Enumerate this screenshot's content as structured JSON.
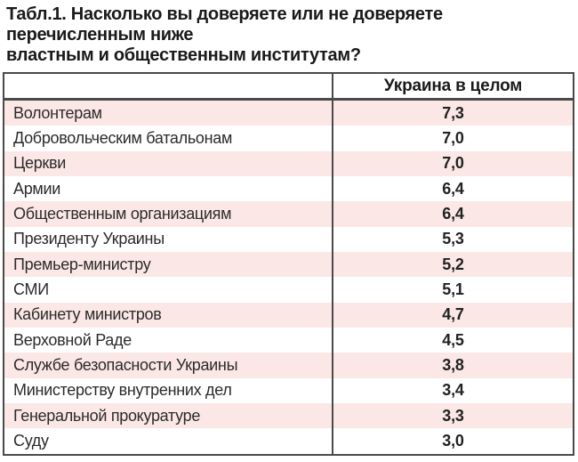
{
  "title": {
    "lines": [
      "Табл.1. Насколько вы доверяете или не доверяете",
      "перечисленным ниже",
      "властным и общественным институтам?"
    ]
  },
  "table": {
    "header": {
      "col1": "",
      "col2": "Украина в целом"
    },
    "rows": [
      {
        "label": "Волонтерам",
        "value": "7,3"
      },
      {
        "label": "Добровольческим батальонам",
        "value": "7,0"
      },
      {
        "label": "Церкви",
        "value": "7,0"
      },
      {
        "label": "Армии",
        "value": "6,4"
      },
      {
        "label": "Общественным организациям",
        "value": "6,4"
      },
      {
        "label": "Президенту Украины",
        "value": "5,3"
      },
      {
        "label": "Премьер-министру",
        "value": "5,2"
      },
      {
        "label": "СМИ",
        "value": "5,1"
      },
      {
        "label": "Кабинету министров",
        "value": "4,7"
      },
      {
        "label": "Верховной Раде",
        "value": "4,5"
      },
      {
        "label": "Службе безопасности Украины",
        "value": "3,8"
      },
      {
        "label": "Министерству внутренних дел",
        "value": "3,4"
      },
      {
        "label": "Генеральной прокуратуре",
        "value": "3,3"
      },
      {
        "label": "Суду",
        "value": "3,0"
      }
    ]
  },
  "colors": {
    "row_stripe_pink": "#fbe8e6",
    "row_white": "#ffffff",
    "border": "#4a4a4a",
    "text": "#1a1a1a"
  },
  "chart_data": {
    "type": "table",
    "title": "Табл.1. Насколько вы доверяете или не доверяете перечисленным ниже властным и общественным институтам?",
    "columns": [
      "",
      "Украина в целом"
    ],
    "categories": [
      "Волонтерам",
      "Добровольческим батальонам",
      "Церкви",
      "Армии",
      "Общественным организациям",
      "Президенту Украины",
      "Премьер-министру",
      "СМИ",
      "Кабинету министров",
      "Верховной Раде",
      "Службе безопасности Украины",
      "Министерству внутренних дел",
      "Генеральной прокуратуре",
      "Суду"
    ],
    "values": [
      7.3,
      7.0,
      7.0,
      6.4,
      6.4,
      5.3,
      5.2,
      5.1,
      4.7,
      4.5,
      3.8,
      3.4,
      3.3,
      3.0
    ],
    "series": [
      {
        "name": "Украина в целом",
        "values": [
          7.3,
          7.0,
          7.0,
          6.4,
          6.4,
          5.3,
          5.2,
          5.1,
          4.7,
          4.5,
          3.8,
          3.4,
          3.3,
          3.0
        ]
      }
    ],
    "layout": "zebra-striped table, first column institution names, second column centered bold scores, decimal comma notation"
  }
}
